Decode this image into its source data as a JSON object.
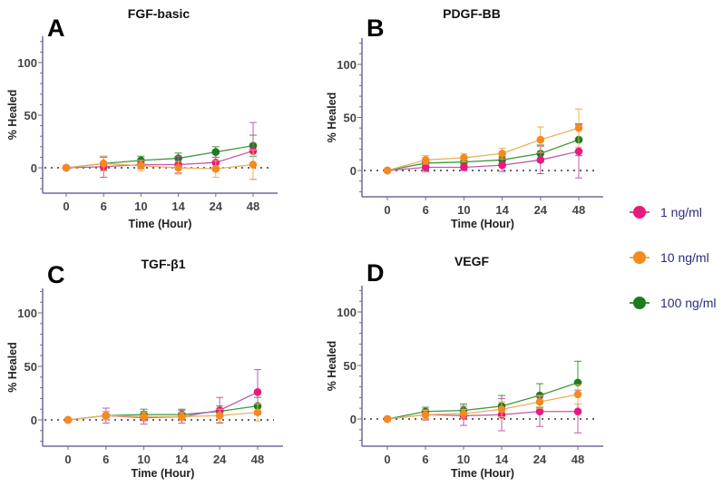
{
  "chart_data": [
    {
      "type": "line",
      "panel_letter": "A",
      "title": "FGF-basic",
      "xlabel": "Time (Hour)",
      "ylabel": "% Healed",
      "categories": [
        "0",
        "6",
        "10",
        "14",
        "24",
        "48"
      ],
      "yticks": [
        "0",
        "50",
        "100"
      ],
      "ylim": [
        -25,
        125
      ],
      "reference_line": 0,
      "series": [
        {
          "name": "1 ng/ml",
          "values": [
            0,
            1,
            3,
            3,
            5,
            16
          ],
          "errors": [
            0,
            10,
            4,
            8,
            5,
            27
          ]
        },
        {
          "name": "10 ng/ml",
          "values": [
            0,
            4,
            2,
            0,
            -1,
            3
          ],
          "errors": [
            0,
            7,
            5,
            6,
            8,
            14
          ]
        },
        {
          "name": "100 ng/ml",
          "values": [
            0,
            4,
            7,
            9,
            15,
            21
          ],
          "errors": [
            0,
            6,
            4,
            5,
            5,
            10
          ]
        }
      ]
    },
    {
      "type": "line",
      "panel_letter": "B",
      "title": "PDGF-BB",
      "xlabel": "Time (Hour)",
      "ylabel": "% Healed",
      "categories": [
        "0",
        "6",
        "10",
        "14",
        "24",
        "48"
      ],
      "yticks": [
        "0",
        "50",
        "100"
      ],
      "ylim": [
        -25,
        125
      ],
      "reference_line": 0,
      "series": [
        {
          "name": "1 ng/ml",
          "values": [
            0,
            3,
            3,
            5,
            10,
            18
          ],
          "errors": [
            0,
            4,
            3,
            6,
            13,
            25
          ]
        },
        {
          "name": "10 ng/ml",
          "values": [
            0,
            10,
            12,
            16,
            29,
            40
          ],
          "errors": [
            0,
            4,
            4,
            5,
            12,
            18
          ]
        },
        {
          "name": "100 ng/ml",
          "values": [
            0,
            7,
            8,
            10,
            16,
            29
          ],
          "errors": [
            0,
            3,
            3,
            3,
            8,
            15
          ]
        }
      ]
    },
    {
      "type": "line",
      "panel_letter": "C",
      "title": "TGF-β1",
      "xlabel": "Time (Hour)",
      "ylabel": "% Healed",
      "categories": [
        "0",
        "6",
        "10",
        "14",
        "24",
        "48"
      ],
      "yticks": [
        "0",
        "50",
        "100"
      ],
      "ylim": [
        -25,
        125
      ],
      "reference_line": 0,
      "series": [
        {
          "name": "1 ng/ml",
          "values": [
            0,
            4,
            2,
            3,
            9,
            26
          ],
          "errors": [
            0,
            7,
            6,
            6,
            12,
            21
          ]
        },
        {
          "name": "10 ng/ml",
          "values": [
            0,
            4,
            3,
            3,
            4,
            7
          ],
          "errors": [
            0,
            4,
            4,
            4,
            6,
            8
          ]
        },
        {
          "name": "100 ng/ml",
          "values": [
            0,
            4,
            5,
            5,
            8,
            13
          ],
          "errors": [
            0,
            4,
            5,
            5,
            5,
            8
          ]
        }
      ]
    },
    {
      "type": "line",
      "panel_letter": "D",
      "title": "VEGF",
      "xlabel": "Time (Hour)",
      "ylabel": "% Healed",
      "categories": [
        "0",
        "6",
        "10",
        "14",
        "24",
        "48"
      ],
      "yticks": [
        "0",
        "50",
        "100"
      ],
      "ylim": [
        -25,
        125
      ],
      "reference_line": 0,
      "series": [
        {
          "name": "1 ng/ml",
          "values": [
            0,
            4,
            3,
            4,
            7,
            7
          ],
          "errors": [
            0,
            5,
            9,
            15,
            14,
            20
          ]
        },
        {
          "name": "10 ng/ml",
          "values": [
            0,
            4,
            5,
            9,
            16,
            23
          ],
          "errors": [
            0,
            4,
            4,
            7,
            6,
            9
          ]
        },
        {
          "name": "100 ng/ml",
          "values": [
            0,
            7,
            8,
            12,
            22,
            34
          ],
          "errors": [
            0,
            4,
            6,
            10,
            11,
            20
          ]
        }
      ]
    }
  ],
  "legend": {
    "placement": "right",
    "items": [
      {
        "label": "1 ng/ml",
        "color": "#e8197f",
        "line_color": "#c35aa8"
      },
      {
        "label": "10 ng/ml",
        "color": "#f58a1f",
        "line_color": "#e8b060"
      },
      {
        "label": "100 ng/ml",
        "color": "#1e7b1e",
        "line_color": "#3c9a3c"
      }
    ]
  },
  "colors": {
    "axis": "#6b6b9e",
    "text": "#444444",
    "legend_text": "#2a2a80"
  }
}
